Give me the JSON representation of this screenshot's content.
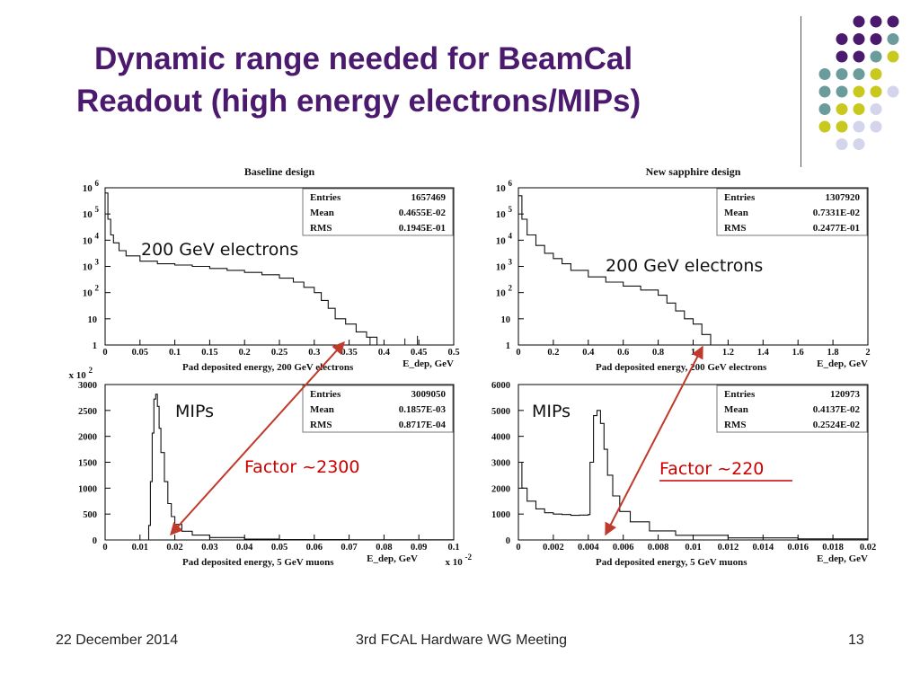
{
  "slide": {
    "title_line1": "Dynamic range needed for BeamCal",
    "title_line2": "Readout (high energy electrons/MIPs)",
    "footer_date": "22 December 2014",
    "footer_meeting": "3rd FCAL Hardware WG Meeting",
    "footer_page": "13"
  },
  "colors": {
    "title": "#4b1a6e",
    "dot_dark": "#4b1a6e",
    "dot_teal": "#6b9c9c",
    "dot_yellow": "#c8c81e",
    "dot_lavender": "#d4d4ec",
    "arrow": "#c0392b",
    "annotation": "#cc0000"
  },
  "annotations": {
    "baseline_electrons": "200 GeV electrons",
    "sapphire_electrons": "200 GeV electrons",
    "baseline_mips": "MIPs",
    "sapphire_mips": "MIPs",
    "factor_baseline": "Factor ~2300",
    "factor_sapphire": "Factor ~220"
  },
  "chart_data": [
    {
      "type": "area",
      "title": "Baseline design",
      "xlabel": "Pad deposited energy, 200 GeV electrons",
      "x_unit_label": "E_dep, GeV",
      "x_ticks": [
        "0",
        "0.05",
        "0.1",
        "0.15",
        "0.2",
        "0.25",
        "0.3",
        "0.35",
        "0.4",
        "0.45",
        "0.5"
      ],
      "xlim": [
        0,
        0.5
      ],
      "y_scale": "log",
      "y_ticks": [
        "1",
        "10",
        "10^2",
        "10^3",
        "10^4",
        "10^5",
        "10^6"
      ],
      "ylim_log10": [
        0,
        6
      ],
      "stats": [
        {
          "k": "Entries",
          "v": "1657469"
        },
        {
          "k": "Mean",
          "v": "0.4655E-02"
        },
        {
          "k": "RMS",
          "v": "0.1945E-01"
        }
      ],
      "x": [
        0,
        0.004,
        0.008,
        0.012,
        0.02,
        0.03,
        0.05,
        0.075,
        0.1,
        0.125,
        0.15,
        0.175,
        0.2,
        0.225,
        0.25,
        0.27,
        0.285,
        0.3,
        0.31,
        0.32,
        0.33,
        0.345,
        0.36,
        0.375,
        0.39,
        0.44,
        0.45
      ],
      "values": [
        5.8,
        4.8,
        4.2,
        3.9,
        3.6,
        3.4,
        3.2,
        3.1,
        3.05,
        3.0,
        2.92,
        2.85,
        2.77,
        2.68,
        2.55,
        2.4,
        2.2,
        2.0,
        1.7,
        1.4,
        1.0,
        0.8,
        0.5,
        0.3,
        0,
        0,
        0
      ]
    },
    {
      "type": "area",
      "title": "New sapphire design",
      "xlabel": "Pad deposited energy, 200 GeV electrons",
      "x_unit_label": "E_dep, GeV",
      "x_ticks": [
        "0",
        "0.2",
        "0.4",
        "0.6",
        "0.8",
        "1",
        "1.2",
        "1.4",
        "1.6",
        "1.8",
        "2"
      ],
      "xlim": [
        0,
        2
      ],
      "y_scale": "log",
      "y_ticks": [
        "1",
        "10",
        "10^2",
        "10^3",
        "10^4",
        "10^5",
        "10^6"
      ],
      "ylim_log10": [
        0,
        6
      ],
      "stats": [
        {
          "k": "Entries",
          "v": "1307920"
        },
        {
          "k": "Mean",
          "v": "0.7331E-02"
        },
        {
          "k": "RMS",
          "v": "0.2477E-01"
        }
      ],
      "x": [
        0,
        0.02,
        0.05,
        0.1,
        0.15,
        0.2,
        0.25,
        0.3,
        0.4,
        0.5,
        0.6,
        0.7,
        0.8,
        0.85,
        0.9,
        0.95,
        1.0,
        1.05,
        1.1
      ],
      "values": [
        5.7,
        4.8,
        4.2,
        3.8,
        3.5,
        3.3,
        3.1,
        2.85,
        2.6,
        2.4,
        2.25,
        2.1,
        1.9,
        1.6,
        1.3,
        1.0,
        0.8,
        0.4,
        0
      ]
    },
    {
      "type": "area",
      "title": "",
      "xlabel": "Pad deposited energy, 5 GeV muons",
      "x_unit_label": "E_dep, GeV",
      "x_scale_label": "x 10^-2",
      "x_ticks": [
        "0",
        "0.01",
        "0.02",
        "0.03",
        "0.04",
        "0.05",
        "0.06",
        "0.07",
        "0.08",
        "0.09",
        "0.1"
      ],
      "xlim": [
        0,
        0.1
      ],
      "y_multiplier_label": "x 10^2",
      "y_ticks": [
        "0",
        "500",
        "1000",
        "1500",
        "2000",
        "2500",
        "3000"
      ],
      "ylim": [
        0,
        3200
      ],
      "stats": [
        {
          "k": "Entries",
          "v": "3009050"
        },
        {
          "k": "Mean",
          "v": "0.1857E-03"
        },
        {
          "k": "RMS",
          "v": "0.8717E-04"
        }
      ],
      "x": [
        0,
        0.012,
        0.0125,
        0.013,
        0.0135,
        0.014,
        0.0145,
        0.015,
        0.0155,
        0.016,
        0.017,
        0.018,
        0.019,
        0.02,
        0.022,
        0.025,
        0.03,
        0.04,
        0.05,
        0.07,
        0.1
      ],
      "values": [
        0,
        0,
        300,
        1200,
        2200,
        2900,
        3000,
        2750,
        2300,
        1800,
        1200,
        750,
        480,
        320,
        180,
        100,
        50,
        18,
        8,
        3,
        1
      ]
    },
    {
      "type": "area",
      "title": "",
      "xlabel": "Pad deposited energy, 5 GeV muons",
      "x_unit_label": "E_dep, GeV",
      "x_ticks": [
        "0",
        "0.002",
        "0.004",
        "0.006",
        "0.008",
        "0.01",
        "0.012",
        "0.014",
        "0.016",
        "0.018",
        "0.02"
      ],
      "xlim": [
        0,
        0.02
      ],
      "y_ticks": [
        "0",
        "1000",
        "2000",
        "3000",
        "4000",
        "5000",
        "6000"
      ],
      "ylim": [
        0,
        6000
      ],
      "stats": [
        {
          "k": "Entries",
          "v": "120973"
        },
        {
          "k": "Mean",
          "v": "0.4137E-02"
        },
        {
          "k": "RMS",
          "v": "0.2524E-02"
        }
      ],
      "x": [
        0,
        0.0002,
        0.0005,
        0.001,
        0.0015,
        0.002,
        0.0025,
        0.003,
        0.0035,
        0.004,
        0.0041,
        0.0043,
        0.0045,
        0.0047,
        0.0049,
        0.0051,
        0.0054,
        0.0058,
        0.0064,
        0.0075,
        0.009,
        0.012,
        0.016,
        0.02
      ],
      "values": [
        3000,
        2000,
        1500,
        1200,
        1050,
        1000,
        980,
        950,
        960,
        980,
        3000,
        4800,
        5000,
        4500,
        3500,
        2500,
        1700,
        1100,
        700,
        350,
        180,
        80,
        40,
        20
      ]
    }
  ]
}
